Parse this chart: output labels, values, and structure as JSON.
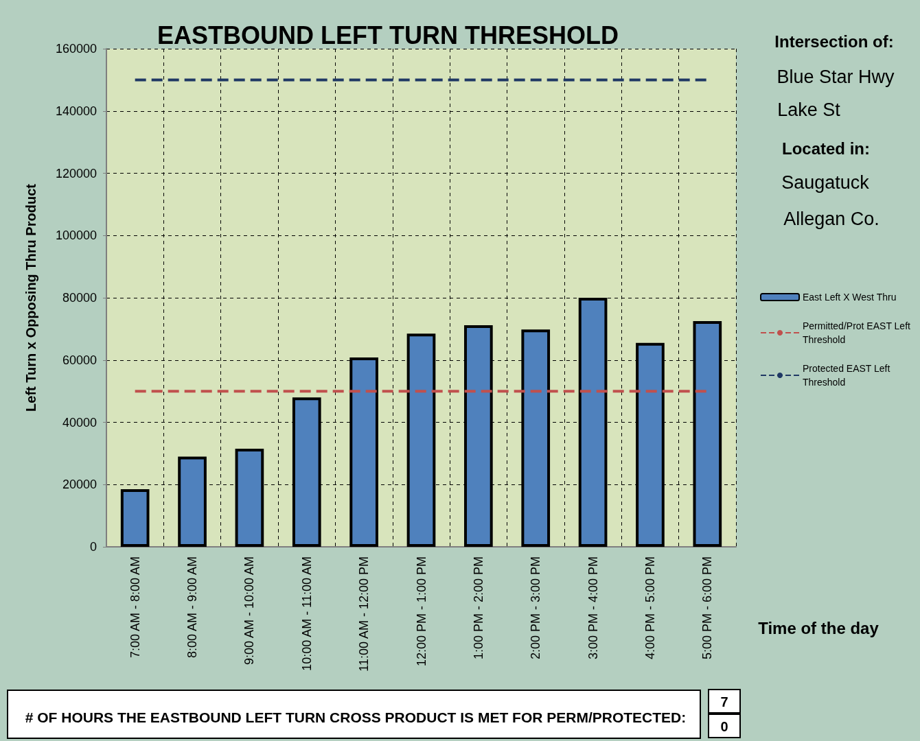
{
  "chart_data": {
    "type": "bar",
    "title": "EASTBOUND LEFT TURN THRESHOLD",
    "ylabel": "Left Turn x Opposing Thru Product",
    "categories": [
      "7:00 AM - 8:00 AM",
      "8:00 AM - 9:00 AM",
      "9:00 AM - 10:00 AM",
      "10:00 AM - 11:00 AM",
      "11:00 AM - 12:00 PM",
      "12:00 PM - 1:00 PM",
      "1:00 PM - 2:00 PM",
      "2:00 PM - 3:00 PM",
      "3:00 PM - 4:00 PM",
      "4:00 PM - 5:00 PM",
      "5:00 PM - 6:00 PM"
    ],
    "series": [
      {
        "name": "East Left X West Thru",
        "color": "#4f81bd",
        "values": [
          18500,
          29000,
          31500,
          48000,
          60800,
          68500,
          71200,
          69800,
          80000,
          65500,
          72500
        ]
      },
      {
        "name": "Permitted/Prot EAST Left Threshold",
        "type": "line",
        "color": "#c0504d",
        "line_style": "dashed",
        "values": [
          50000,
          50000,
          50000,
          50000,
          50000,
          50000,
          50000,
          50000,
          50000,
          50000,
          50000
        ]
      },
      {
        "name": "Protected EAST Left Threshold",
        "type": "line",
        "color": "#1f3864",
        "line_style": "dashed",
        "values": [
          150000,
          150000,
          150000,
          150000,
          150000,
          150000,
          150000,
          150000,
          150000,
          150000,
          150000
        ]
      }
    ],
    "ylim": [
      0,
      160000
    ],
    "yticks": [
      0,
      20000,
      40000,
      60000,
      80000,
      100000,
      120000,
      140000,
      160000
    ],
    "grid": true,
    "legend": "right",
    "marker": "none",
    "annotations": [
      "Intersection of:",
      "Blue Star Hwy",
      "Lake St",
      "Located in:",
      "Saugatuck",
      "Allegan Co.",
      "Time of the day",
      "# OF HOURS THE EASTBOUND LEFT TURN CROSS PRODUCT IS MET FOR PERM/PROTECTED:",
      "7",
      "0"
    ]
  }
}
